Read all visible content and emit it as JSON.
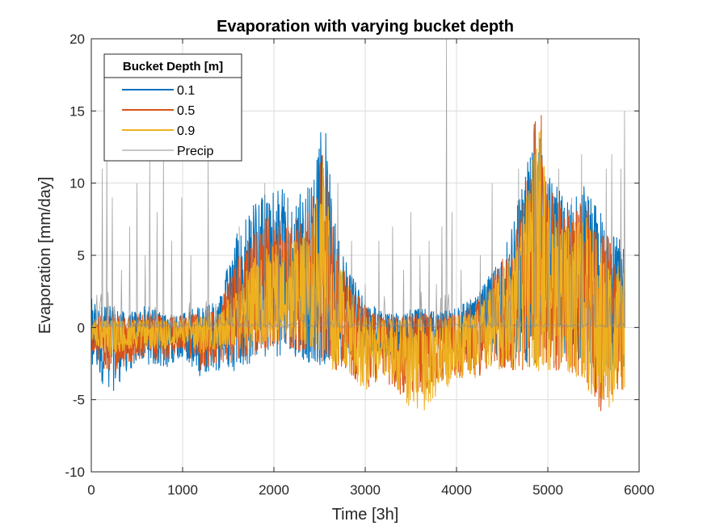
{
  "chart_data": {
    "type": "line",
    "title": "Evaporation with varying bucket depth",
    "xlabel": "Time [3h]",
    "ylabel": "Evaporation [mm/day]",
    "xlim": [
      0,
      6000
    ],
    "ylim": [
      -10,
      20
    ],
    "xticks": [
      0,
      1000,
      2000,
      3000,
      4000,
      5000,
      6000
    ],
    "yticks": [
      -10,
      -5,
      0,
      5,
      10,
      15,
      20
    ],
    "xtick_labels": [
      "0",
      "1000",
      "2000",
      "3000",
      "4000",
      "5000",
      "6000"
    ],
    "ytick_labels": [
      "-10",
      "-5",
      "0",
      "5",
      "10",
      "15",
      "20"
    ],
    "grid": true,
    "legend": {
      "title": "Bucket Depth [m]",
      "placement": "top-left"
    },
    "x_extent": [
      0,
      5840
    ],
    "series": [
      {
        "name": "0.1",
        "color": "#0072BD",
        "envelope": {
          "x": [
            0,
            200,
            400,
            600,
            800,
            1000,
            1200,
            1400,
            1600,
            1800,
            2000,
            2200,
            2400,
            2550,
            2650,
            2800,
            3000,
            3200,
            3400,
            3600,
            3800,
            4000,
            4200,
            4400,
            4600,
            4800,
            4900,
            5000,
            5200,
            5400,
            5600,
            5800
          ],
          "max": [
            2,
            1.5,
            1,
            1.5,
            1,
            1,
            1.5,
            2,
            7,
            9,
            10,
            9.5,
            10,
            15,
            8,
            5,
            2,
            1,
            1,
            1.5,
            1,
            1.5,
            2,
            4,
            7,
            12,
            14,
            11,
            9,
            10,
            8,
            6
          ],
          "min": [
            -2.5,
            -4.8,
            -3,
            -2.5,
            -3,
            -2,
            -3.5,
            -3,
            -3,
            -2.5,
            -2,
            -2,
            -2.5,
            -3,
            -2.5,
            -2,
            -1.5,
            -2,
            -2,
            -2,
            -1.5,
            -2,
            -2,
            -2,
            -2,
            -2.5,
            -2.5,
            -2,
            -2,
            -2.5,
            -3,
            -3
          ]
        }
      },
      {
        "name": "0.5",
        "color": "#D95319",
        "envelope": {
          "x": [
            0,
            200,
            400,
            600,
            800,
            1000,
            1200,
            1400,
            1600,
            1800,
            2000,
            2200,
            2400,
            2550,
            2650,
            2800,
            3000,
            3200,
            3400,
            3600,
            3800,
            4000,
            4200,
            4400,
            4600,
            4800,
            4900,
            5000,
            5200,
            5400,
            5600,
            5800
          ],
          "max": [
            1,
            0.8,
            0.8,
            1,
            0.8,
            0.8,
            1,
            1.5,
            5,
            7,
            8,
            7.5,
            8,
            14,
            7,
            4,
            1.5,
            0.8,
            0.8,
            1,
            0.8,
            1,
            1.5,
            3.5,
            6,
            11,
            17,
            10,
            8,
            9,
            7,
            5
          ],
          "min": [
            -1.5,
            -3.5,
            -2.5,
            -2,
            -2.5,
            -1.5,
            -3,
            -2.5,
            -2.5,
            -2,
            -1.5,
            -1.5,
            -2,
            -2.5,
            -3,
            -3,
            -4.5,
            -3.5,
            -5,
            -4.5,
            -4,
            -3.5,
            -3.5,
            -3,
            -3,
            -3,
            -3,
            -3,
            -3,
            -4,
            -6,
            -4.5
          ]
        }
      },
      {
        "name": "0.9",
        "color": "#EDB120",
        "envelope": {
          "x": [
            0,
            200,
            400,
            600,
            800,
            1000,
            1200,
            1400,
            1600,
            1800,
            2000,
            2200,
            2400,
            2550,
            2650,
            2800,
            3000,
            3200,
            3400,
            3600,
            3800,
            4000,
            4200,
            4400,
            4600,
            4800,
            4900,
            5000,
            5200,
            5400,
            5600,
            5800
          ],
          "max": [
            0.5,
            0.5,
            0.5,
            0.5,
            0.5,
            0.5,
            0.8,
            1,
            3,
            5,
            6,
            6,
            7,
            12,
            6,
            3,
            1,
            0.5,
            0.5,
            0.8,
            0.5,
            0.8,
            1,
            3,
            5,
            10,
            15,
            9,
            7,
            8,
            6,
            4
          ],
          "min": [
            -1,
            -2,
            -1.5,
            -1.5,
            -1.5,
            -1,
            -2,
            -1.5,
            -1.5,
            -1.5,
            -1,
            -1,
            -1.5,
            -2,
            -3,
            -3,
            -4.5,
            -3.5,
            -5,
            -6.2,
            -4.8,
            -3.5,
            -3.5,
            -3,
            -3,
            -3,
            -3,
            -3,
            -3,
            -4,
            -6.3,
            -4.5
          ]
        }
      },
      {
        "name": "Precip",
        "color": "#8C8C8C",
        "peaks": {
          "x": [
            120,
            170,
            230,
            330,
            420,
            500,
            590,
            640,
            720,
            790,
            880,
            990,
            1090,
            1280,
            1620,
            1710,
            1840,
            1900,
            2050,
            2150,
            2230,
            2350,
            2450,
            2610,
            2700,
            2850,
            3000,
            3150,
            3300,
            3420,
            3500,
            3600,
            3700,
            3780,
            3840,
            3890,
            3950,
            4050,
            4150,
            4260,
            4390,
            4500,
            4680,
            4850,
            5000,
            5120,
            5260,
            5370,
            5520,
            5640,
            5700,
            5800,
            5840
          ],
          "y": [
            11,
            12,
            9,
            4,
            7,
            10,
            5,
            12,
            8,
            12,
            6,
            9,
            5,
            12,
            7,
            4,
            6,
            10,
            7,
            9,
            4,
            8,
            4,
            7,
            10,
            6,
            3,
            6,
            7,
            4,
            8,
            5,
            6,
            3,
            7,
            20,
            8,
            4,
            2,
            5,
            10,
            4,
            11,
            14,
            7,
            11,
            9,
            12,
            7,
            11,
            12,
            11,
            15
          ]
        }
      }
    ]
  }
}
